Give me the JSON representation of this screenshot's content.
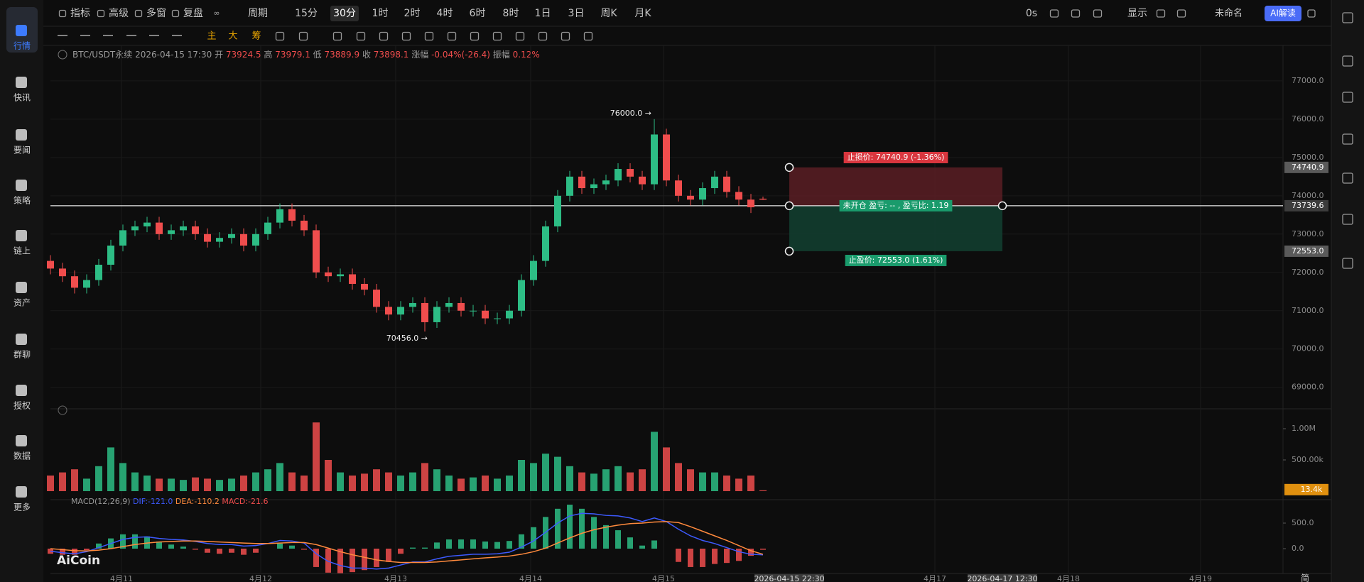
{
  "toolbar": {
    "items": [
      "指标",
      "高级",
      "多窗",
      "复盘",
      "周期",
      "15分",
      "30分",
      "1时",
      "2时",
      "4时",
      "6时",
      "8时",
      "1日",
      "3日",
      "周K",
      "月K"
    ],
    "active_index": 6,
    "countdown": "0s",
    "display": "显示",
    "layout_name": "未命名",
    "ai_button": "AI解读"
  },
  "drawing_bar": {
    "labels": [
      "主",
      "大",
      "筹"
    ]
  },
  "sidebar": {
    "items": [
      "行情",
      "快讯",
      "要闻",
      "策略",
      "链上",
      "资产",
      "群聊",
      "授权",
      "数据",
      "更多"
    ],
    "active_index": 0
  },
  "info": {
    "symbol": "BTC/USDT永续",
    "time": "2026-04-15 17:30",
    "fields": [
      {
        "label": "开",
        "value": 73924.5
      },
      {
        "label": "高",
        "value": 73979.1
      },
      {
        "label": "低",
        "value": 73889.9
      },
      {
        "label": "收",
        "value": 73898.1
      },
      {
        "label": "涨幅",
        "value": "-0.04%(-26.4)"
      },
      {
        "label": "振幅",
        "value": "0.12%"
      }
    ]
  },
  "watermark": "AiCoin",
  "locale_button": "简",
  "chart_data": {
    "type": "candlestick",
    "up_color": "#2dbd85",
    "down_color": "#f04d4d",
    "grid": true,
    "open": [
      72300,
      72100,
      71900,
      71600,
      71800,
      72200,
      72700,
      73100,
      73200,
      73300,
      73000,
      73100,
      73200,
      73000,
      72800,
      72900,
      73000,
      72700,
      73000,
      73300,
      73650,
      73350,
      73100,
      72000,
      71900,
      71950,
      71700,
      71550,
      71100,
      70900,
      71100,
      71200,
      70700,
      71100,
      71200,
      71000,
      71000,
      70800,
      70800,
      71000,
      71800,
      72300,
      73200,
      74000,
      74500,
      74200,
      74300,
      74400,
      74700,
      74500,
      74300,
      75600,
      74400,
      74000,
      73900,
      74200,
      74500,
      74100,
      73900,
      73924.5
    ],
    "high": [
      72450,
      72250,
      72050,
      71950,
      72350,
      72850,
      73250,
      73350,
      73450,
      73450,
      73250,
      73350,
      73350,
      73150,
      73050,
      73150,
      73150,
      73150,
      73450,
      73800,
      73800,
      73500,
      73250,
      72150,
      72100,
      72100,
      71850,
      71700,
      71250,
      71250,
      71350,
      71350,
      71250,
      71350,
      71350,
      71150,
      71150,
      70950,
      71150,
      71950,
      72450,
      73350,
      74150,
      74650,
      74650,
      74450,
      74550,
      74850,
      74850,
      74650,
      76000,
      75750,
      74550,
      74150,
      74350,
      74650,
      74650,
      74250,
      74050,
      73979.1
    ],
    "low": [
      71950,
      71750,
      71450,
      71450,
      71650,
      72050,
      72550,
      72950,
      73050,
      72850,
      72850,
      72950,
      72850,
      72650,
      72650,
      72750,
      72550,
      72550,
      72850,
      73150,
      73200,
      72950,
      71850,
      71750,
      71750,
      71550,
      71400,
      70950,
      70750,
      70750,
      70950,
      70456,
      70550,
      70950,
      70850,
      70850,
      70650,
      70650,
      70650,
      70850,
      71650,
      72150,
      73050,
      73850,
      74050,
      74050,
      74150,
      74250,
      74350,
      74150,
      74150,
      74250,
      73850,
      73750,
      73750,
      74050,
      73950,
      73750,
      73550,
      73889.9
    ],
    "close": [
      72100,
      71900,
      71600,
      71800,
      72200,
      72700,
      73100,
      73200,
      73300,
      73000,
      73100,
      73200,
      73000,
      72800,
      72900,
      73000,
      72700,
      73000,
      73300,
      73650,
      73350,
      73100,
      72000,
      71900,
      71950,
      71700,
      71550,
      71100,
      70900,
      71100,
      71200,
      70700,
      71100,
      71200,
      71000,
      71000,
      70800,
      70800,
      71000,
      71800,
      72300,
      73200,
      74000,
      74500,
      74200,
      74300,
      74400,
      74700,
      74500,
      74300,
      75600,
      74400,
      74000,
      73900,
      74200,
      74500,
      74100,
      73900,
      73700,
      73898.1
    ],
    "ylim": [
      68550,
      77480
    ],
    "yticks": [
      {
        "value": 77000,
        "label": "77000.0"
      },
      {
        "value": 76000,
        "label": "76000.0"
      },
      {
        "value": 75000,
        "label": "75000.0"
      },
      {
        "value": 74000,
        "label": "74000.0"
      },
      {
        "value": 73000,
        "label": "73000.0"
      },
      {
        "value": 72000,
        "label": "72000.0"
      },
      {
        "value": 71000,
        "label": "71000.0"
      },
      {
        "value": 70000,
        "label": "70000.0"
      },
      {
        "value": 69000,
        "label": "69000.0"
      }
    ],
    "x_labels": [
      {
        "text": "4月11"
      },
      {
        "text": "4月12"
      },
      {
        "text": "4月13"
      },
      {
        "text": "4月14"
      },
      {
        "text": "4月15"
      },
      {
        "text": "2026-04-15 22:30",
        "highlight": true
      },
      {
        "text": "4月17"
      },
      {
        "text": "2026-04-17 12:30",
        "highlight": true
      },
      {
        "text": "4月18"
      },
      {
        "text": "4月19"
      }
    ],
    "annotations": {
      "max": "76000.0 →",
      "min": "70456.0 →"
    },
    "position": {
      "stop_loss_label": "止损价: 74740.9 (-1.36%)",
      "entry_label": "未开仓  盈亏: -- , 盈亏比: 1.19",
      "take_profit_label": "止盈价: 72553.0 (1.61%)",
      "risk_color": "#5a1f24",
      "reward_color": "#123d2f",
      "tags": [
        {
          "value": 74740.9,
          "label": "74740.9"
        },
        {
          "value": 73739.6,
          "label": "73739.6"
        },
        {
          "value": 72553,
          "label": "72553.0"
        }
      ]
    },
    "volume": {
      "values": [
        250000,
        300000,
        350000,
        200000,
        400000,
        700000,
        450000,
        300000,
        250000,
        200000,
        200000,
        180000,
        220000,
        200000,
        180000,
        200000,
        250000,
        300000,
        350000,
        450000,
        300000,
        250000,
        1100000,
        500000,
        300000,
        250000,
        280000,
        350000,
        300000,
        250000,
        300000,
        450000,
        350000,
        250000,
        200000,
        220000,
        250000,
        200000,
        250000,
        500000,
        450000,
        600000,
        550000,
        400000,
        300000,
        280000,
        350000,
        400000,
        300000,
        350000,
        950000,
        700000,
        450000,
        350000,
        300000,
        300000,
        250000,
        200000,
        250000,
        13400
      ],
      "current_label": "13.4k",
      "ylim": [
        0,
        1250000
      ],
      "yticks": [
        {
          "value": 1000000,
          "label": "1.00M"
        },
        {
          "value": 500000,
          "label": "500.00k"
        }
      ]
    },
    "macd": {
      "title": "MACD(12,26,9)",
      "dif_label": "DIF:-121.0",
      "dea_label": "DEA:-110.2",
      "macd_label": "MACD:-21.6",
      "dif_color": "#3d5afe",
      "dea_color": "#ff8a3d",
      "dif": [
        -50,
        -80,
        -100,
        -60,
        20,
        100,
        180,
        220,
        230,
        200,
        180,
        170,
        140,
        100,
        80,
        80,
        50,
        60,
        100,
        160,
        150,
        110,
        -100,
        -250,
        -330,
        -380,
        -380,
        -400,
        -380,
        -320,
        -260,
        -260,
        -200,
        -150,
        -130,
        -110,
        -110,
        -100,
        -70,
        30,
        150,
        320,
        500,
        640,
        690,
        680,
        650,
        640,
        600,
        530,
        600,
        530,
        380,
        250,
        160,
        100,
        20,
        -60,
        -110,
        -121
      ],
      "dea": [
        0,
        -20,
        -40,
        -45,
        -30,
        0,
        40,
        80,
        110,
        130,
        140,
        150,
        150,
        140,
        130,
        120,
        110,
        100,
        100,
        110,
        120,
        120,
        80,
        10,
        -60,
        -120,
        -170,
        -220,
        -250,
        -270,
        -270,
        -270,
        -260,
        -240,
        -220,
        -200,
        -180,
        -165,
        -145,
        -110,
        -60,
        10,
        110,
        210,
        300,
        370,
        420,
        460,
        490,
        500,
        520,
        530,
        510,
        430,
        340,
        250,
        160,
        60,
        -40,
        -110.2
      ],
      "hist": [
        -100,
        -120,
        -120,
        -30,
        100,
        200,
        280,
        280,
        240,
        140,
        80,
        40,
        -20,
        -80,
        -100,
        -80,
        -120,
        -80,
        0,
        100,
        60,
        -20,
        -360,
        -470,
        -480,
        -460,
        -420,
        -360,
        -260,
        -100,
        20,
        20,
        120,
        180,
        180,
        180,
        140,
        130,
        150,
        280,
        420,
        620,
        780,
        860,
        780,
        620,
        460,
        360,
        220,
        60,
        160,
        0,
        -260,
        -360,
        -360,
        -300,
        -280,
        -240,
        -140,
        -21.6
      ],
      "ylim": [
        -486,
        847
      ],
      "yticks": [
        {
          "value": 500,
          "label": "500.0"
        },
        {
          "value": 0,
          "label": "0.0"
        }
      ]
    }
  }
}
